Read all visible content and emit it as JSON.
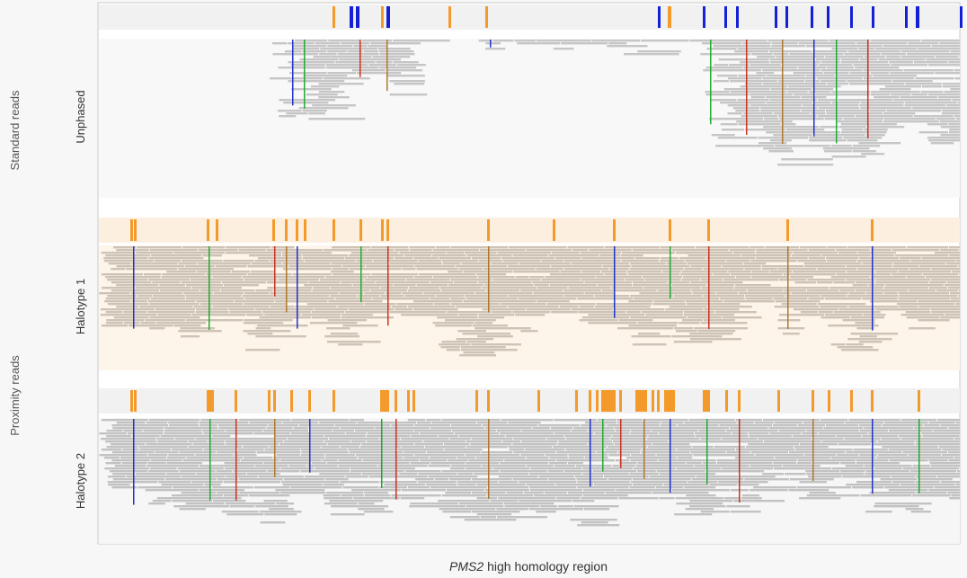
{
  "groups": {
    "standard": "Standard reads",
    "proximity": "Proximity reads"
  },
  "tracks": [
    "Unphased",
    "Halotype 1",
    "Halotype 2"
  ],
  "x_label": {
    "gene": "PMS2",
    "text": "high homology region"
  }
}
